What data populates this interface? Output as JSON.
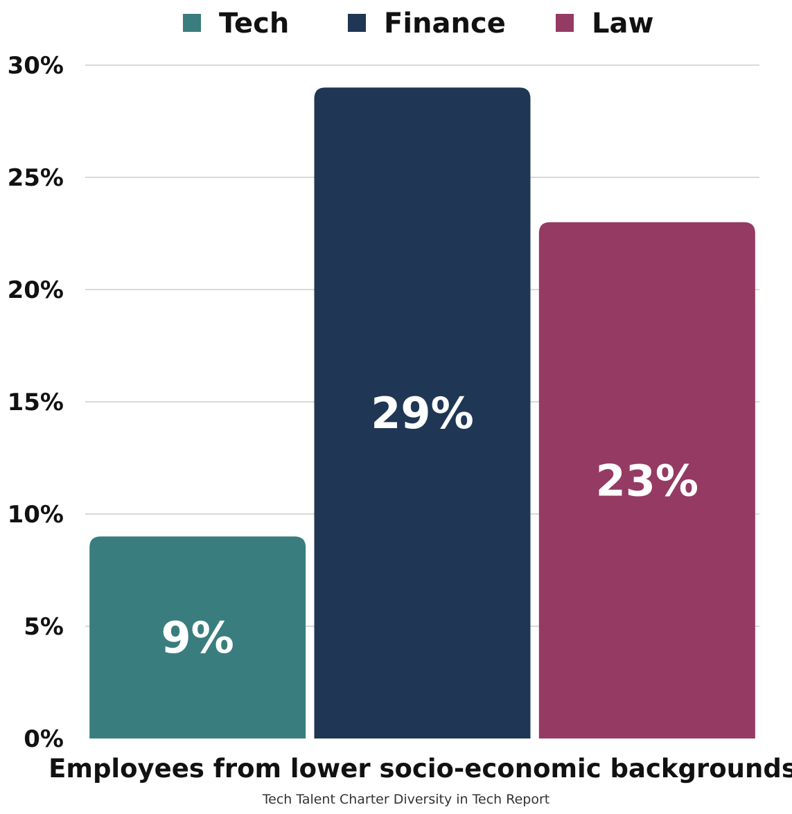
{
  "chart_data": {
    "type": "bar",
    "categories": [
      "Tech",
      "Finance",
      "Law"
    ],
    "values": [
      9,
      29,
      23
    ],
    "data_labels": [
      "9%",
      "29%",
      "23%"
    ],
    "colors": [
      "#3a7d7e",
      "#1f3654",
      "#953a63"
    ],
    "legend": {
      "placement": "top",
      "entries": [
        "Tech",
        "Finance",
        "Law"
      ]
    },
    "ylim": [
      0,
      30
    ],
    "yticks": [
      0,
      5,
      10,
      15,
      20,
      25,
      30
    ],
    "ytick_labels": [
      "0%",
      "5%",
      "10%",
      "15%",
      "20%",
      "25%",
      "30%"
    ],
    "grid": true,
    "xlabel": "Employees from lower socio-economic backgrounds",
    "source": "Tech Talent Charter Diversity in Tech Report"
  }
}
